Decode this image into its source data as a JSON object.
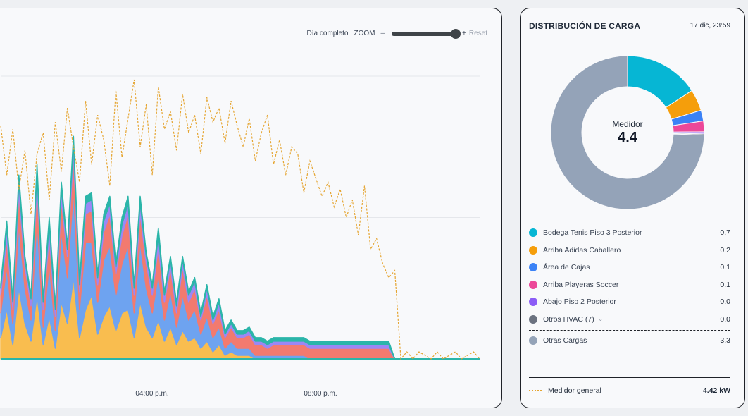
{
  "chart": {
    "range_label": "Día completo",
    "zoom_label": "ZOOM",
    "zoom_minus": "–",
    "zoom_plus": "+",
    "reset_label": "Reset",
    "x_ticks": [
      "04:00 p.m.",
      "08:00 p.m."
    ]
  },
  "side": {
    "title": "DISTRIBUCIÓN DE CARGA",
    "date": "17 dic, 23:59",
    "center_label": "Medidor",
    "center_value": "4.4",
    "loads": [
      {
        "name": "Bodega Tenis Piso 3 Posterior",
        "value": "0.7",
        "color": "#06b6d4"
      },
      {
        "name": "Arriba Adidas Caballero",
        "value": "0.2",
        "color": "#f59e0b"
      },
      {
        "name": "Área de Cajas",
        "value": "0.1",
        "color": "#3b82f6"
      },
      {
        "name": "Arriba Playeras Soccer",
        "value": "0.1",
        "color": "#ec4899"
      },
      {
        "name": "Abajo Piso 2 Posterior",
        "value": "0.0",
        "color": "#8b5cf6"
      },
      {
        "name": "Otros HVAC (7)",
        "value": "0.0",
        "color": "#6b7280"
      }
    ],
    "others": {
      "name": "Otras Cargas",
      "value": "3.3",
      "color": "#94a3b8"
    },
    "meter": {
      "name": "Medidor general",
      "value": "4.42 kW",
      "color": "#e5a531"
    }
  },
  "chart_data": {
    "type": "area",
    "title": "",
    "xlabel": "",
    "ylabel": "",
    "x_ticks": [
      "04:00 p.m.",
      "08:00 p.m."
    ],
    "grid": true,
    "series": [
      {
        "name": "Medidor general",
        "style": "dashed-line",
        "color": "#e5a531",
        "values": [
          6.6,
          5.2,
          6.5,
          4.8,
          5.9,
          4.1,
          5.8,
          6.4,
          4.5,
          6.7,
          5.3,
          7.1,
          6.0,
          5.0,
          7.3,
          5.5,
          6.9,
          6.2,
          4.9,
          7.6,
          5.7,
          6.8,
          7.9,
          6.0,
          7.2,
          5.2,
          7.7,
          6.5,
          7.0,
          5.9,
          7.5,
          6.4,
          6.9,
          5.8,
          7.4,
          6.7,
          7.1,
          6.1,
          7.3,
          6.6,
          6.0,
          6.8,
          5.6,
          6.4,
          6.9,
          5.5,
          6.2,
          5.2,
          6.0,
          5.8,
          4.7,
          5.6,
          5.1,
          4.6,
          5.0,
          4.3,
          4.8,
          4.0,
          4.5,
          3.5,
          4.9,
          3.1,
          3.4,
          2.7,
          2.3,
          2.5,
          0.0,
          0.2,
          0.0,
          0.2,
          0.1,
          0.0,
          0.2,
          0.0,
          0.1,
          0.2,
          0.0,
          0.1,
          0.2,
          0.0
        ]
      },
      {
        "name": "Otras Cargas",
        "color": "#f9bd4f",
        "values": [
          0.6,
          1.4,
          0.4,
          2.0,
          1.0,
          0.5,
          1.8,
          0.4,
          1.2,
          0.3,
          1.6,
          1.0,
          2.3,
          0.6,
          1.4,
          1.8,
          0.7,
          1.2,
          1.5,
          0.8,
          1.3,
          1.4,
          0.6,
          1.6,
          0.9,
          0.6,
          1.1,
          0.5,
          0.9,
          0.4,
          0.8,
          0.5,
          0.6,
          0.3,
          0.5,
          0.2,
          0.4,
          0.1,
          0.2,
          0.1,
          0.1,
          0.1,
          0.0,
          0.0,
          0.0,
          0.0,
          0.0,
          0.0,
          0.0,
          0.0,
          0.0,
          0.0,
          0.0,
          0.0,
          0.0,
          0.0,
          0.0,
          0.0,
          0.0,
          0.0,
          0.0,
          0.0,
          0.0,
          0.0,
          0.0,
          0.0,
          0.0,
          0.0,
          0.0,
          0.0,
          0.0,
          0.0,
          0.0,
          0.0,
          0.0,
          0.0,
          0.0,
          0.0,
          0.0,
          0.0
        ]
      },
      {
        "name": "Área de Cajas",
        "color": "#6ea3f0",
        "values": [
          0.7,
          1.2,
          0.6,
          1.8,
          1.0,
          0.6,
          2.2,
          0.5,
          1.5,
          0.5,
          2.0,
          1.3,
          2.5,
          0.8,
          1.9,
          1.5,
          0.9,
          1.6,
          1.7,
          1.0,
          1.4,
          1.8,
          0.7,
          1.7,
          1.1,
          0.7,
          1.3,
          0.6,
          1.0,
          0.5,
          1.0,
          0.6,
          0.8,
          0.4,
          0.7,
          0.4,
          0.5,
          0.2,
          0.3,
          0.2,
          0.2,
          0.2,
          0.1,
          0.1,
          0.1,
          0.1,
          0.1,
          0.1,
          0.1,
          0.1,
          0.1,
          0.0,
          0.0,
          0.0,
          0.0,
          0.0,
          0.0,
          0.0,
          0.0,
          0.0,
          0.0,
          0.0,
          0.0,
          0.0,
          0.0,
          0.0,
          0.0,
          0.0,
          0.0,
          0.0,
          0.0,
          0.0,
          0.0,
          0.0,
          0.0,
          0.0,
          0.0,
          0.0,
          0.0,
          0.0
        ]
      },
      {
        "name": "Bodega Tenis Piso 3 Posterior",
        "color": "#f27a6f",
        "values": [
          0.5,
          0.8,
          0.4,
          0.9,
          0.6,
          0.4,
          1.0,
          0.5,
          0.8,
          0.4,
          0.9,
          0.6,
          1.0,
          0.5,
          0.8,
          0.9,
          0.5,
          0.8,
          0.9,
          0.6,
          0.8,
          0.9,
          0.5,
          0.8,
          0.7,
          0.5,
          0.8,
          0.5,
          0.7,
          0.4,
          0.8,
          0.5,
          0.6,
          0.4,
          0.6,
          0.4,
          0.5,
          0.3,
          0.4,
          0.3,
          0.3,
          0.4,
          0.3,
          0.3,
          0.2,
          0.3,
          0.3,
          0.3,
          0.3,
          0.3,
          0.3,
          0.3,
          0.3,
          0.3,
          0.3,
          0.3,
          0.3,
          0.3,
          0.3,
          0.3,
          0.3,
          0.3,
          0.3,
          0.3,
          0.3,
          0.0,
          0.0,
          0.0,
          0.0,
          0.0,
          0.0,
          0.0,
          0.0,
          0.0,
          0.0,
          0.0,
          0.0,
          0.0,
          0.0,
          0.0
        ]
      },
      {
        "name": "Abajo Piso 2 Posterior",
        "color": "#9b87f5",
        "values": [
          0.2,
          0.3,
          0.2,
          0.3,
          0.2,
          0.2,
          0.3,
          0.2,
          0.3,
          0.2,
          0.3,
          0.2,
          0.3,
          0.2,
          0.3,
          0.3,
          0.2,
          0.3,
          0.3,
          0.2,
          0.3,
          0.3,
          0.2,
          0.3,
          0.2,
          0.2,
          0.3,
          0.2,
          0.2,
          0.2,
          0.2,
          0.2,
          0.2,
          0.1,
          0.2,
          0.1,
          0.2,
          0.1,
          0.1,
          0.1,
          0.1,
          0.1,
          0.1,
          0.1,
          0.1,
          0.1,
          0.1,
          0.1,
          0.1,
          0.1,
          0.1,
          0.1,
          0.1,
          0.1,
          0.1,
          0.1,
          0.1,
          0.1,
          0.1,
          0.1,
          0.1,
          0.1,
          0.1,
          0.1,
          0.1,
          0.0,
          0.0,
          0.0,
          0.0,
          0.0,
          0.0,
          0.0,
          0.0,
          0.0,
          0.0,
          0.0,
          0.0,
          0.0,
          0.0,
          0.0
        ]
      },
      {
        "name": "Arriba Adidas Caballero",
        "color": "#2bb5a9",
        "values": [
          0.1,
          0.2,
          0.1,
          0.2,
          0.1,
          0.1,
          0.2,
          0.1,
          0.2,
          0.1,
          0.2,
          0.1,
          0.2,
          0.1,
          0.2,
          0.2,
          0.1,
          0.2,
          0.2,
          0.1,
          0.2,
          0.2,
          0.1,
          0.2,
          0.1,
          0.1,
          0.2,
          0.1,
          0.1,
          0.1,
          0.1,
          0.1,
          0.1,
          0.1,
          0.1,
          0.1,
          0.1,
          0.1,
          0.1,
          0.1,
          0.1,
          0.1,
          0.1,
          0.1,
          0.1,
          0.1,
          0.1,
          0.1,
          0.1,
          0.1,
          0.1,
          0.1,
          0.1,
          0.1,
          0.1,
          0.1,
          0.1,
          0.1,
          0.1,
          0.1,
          0.1,
          0.1,
          0.1,
          0.1,
          0.1,
          0.0,
          0.0,
          0.0,
          0.0,
          0.0,
          0.0,
          0.0,
          0.0,
          0.0,
          0.0,
          0.0,
          0.0,
          0.0,
          0.0,
          0.0
        ]
      }
    ],
    "donut": {
      "center_label": "Medidor",
      "center_value": 4.4,
      "slices": [
        {
          "name": "Bodega Tenis Piso 3 Posterior",
          "value": 0.7
        },
        {
          "name": "Arriba Adidas Caballero",
          "value": 0.2
        },
        {
          "name": "Área de Cajas",
          "value": 0.1
        },
        {
          "name": "Arriba Playeras Soccer",
          "value": 0.1
        },
        {
          "name": "Abajo Piso 2 Posterior",
          "value": 0.02
        },
        {
          "name": "Otros HVAC (7)",
          "value": 0.01
        },
        {
          "name": "Otras Cargas",
          "value": 3.3
        }
      ]
    }
  }
}
